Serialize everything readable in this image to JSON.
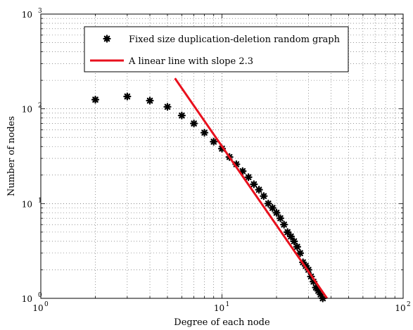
{
  "chart_data": {
    "type": "scatter",
    "title": "",
    "xlabel": "Degree of each node",
    "ylabel": "Number of nodes",
    "xscale": "log",
    "yscale": "log",
    "xlim": [
      1,
      100
    ],
    "ylim": [
      1,
      1000
    ],
    "grid": true,
    "legend_position": "top-right",
    "x_ticks": [
      {
        "value": 1,
        "base": "10",
        "exp": "0"
      },
      {
        "value": 10,
        "base": "10",
        "exp": "1"
      },
      {
        "value": 100,
        "base": "10",
        "exp": "2"
      }
    ],
    "y_ticks": [
      {
        "value": 1,
        "base": "10",
        "exp": "0"
      },
      {
        "value": 10,
        "base": "10",
        "exp": "1"
      },
      {
        "value": 100,
        "base": "10",
        "exp": "2"
      },
      {
        "value": 1000,
        "base": "10",
        "exp": "3"
      }
    ],
    "series": [
      {
        "name": "Fixed size duplication-deletion random graph",
        "kind": "scatter",
        "marker": "asterisk",
        "color": "#000000",
        "x": [
          2,
          3,
          4,
          5,
          6,
          7,
          8,
          9,
          10,
          11,
          12,
          13,
          14,
          15,
          16,
          17,
          18,
          19,
          20,
          21,
          22,
          23,
          24,
          25,
          26,
          27,
          28,
          29,
          30,
          31,
          32,
          33,
          34,
          35,
          36
        ],
        "y": [
          125,
          135,
          122,
          105,
          85,
          70,
          56,
          45,
          38,
          31,
          26,
          22,
          19,
          16,
          14,
          12,
          10,
          9,
          8,
          7,
          6,
          5,
          4.5,
          4,
          3.5,
          3,
          2.4,
          2.2,
          2,
          1.7,
          1.5,
          1.3,
          1.2,
          1.1,
          1.0
        ]
      },
      {
        "name": "A linear line with slope 2.3",
        "kind": "line",
        "color": "#e8101d",
        "x": [
          5.5,
          38
        ],
        "y": [
          210,
          1.0
        ]
      }
    ]
  }
}
